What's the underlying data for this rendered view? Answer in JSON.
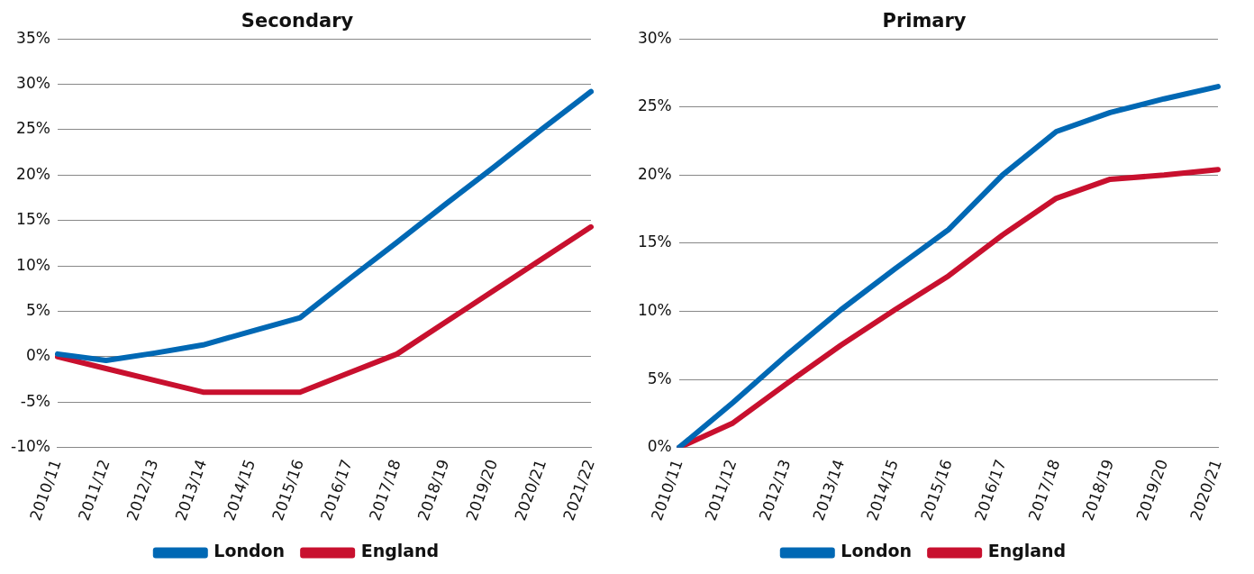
{
  "chart_data": [
    {
      "type": "line",
      "title": "Secondary",
      "categories": [
        "2010/11",
        "2011/12",
        "2012/13",
        "2013/14",
        "2014/15",
        "2015/16",
        "2016/17",
        "2017/18",
        "2018/19",
        "2019/20",
        "2020/21",
        "2021/22"
      ],
      "series": [
        {
          "name": "London",
          "color": "#0068b4",
          "values": [
            0.3,
            -0.4,
            0.4,
            1.3,
            2.8,
            4.3,
            8.5,
            12.6,
            16.8,
            20.9,
            25.1,
            29.2
          ]
        },
        {
          "name": "England",
          "color": "#c8102e",
          "values": [
            0,
            -1.3,
            -2.6,
            -3.9,
            -3.9,
            -3.9,
            -1.8,
            0.3,
            3.8,
            7.3,
            10.8,
            14.3
          ]
        }
      ],
      "ylim": [
        -10,
        35
      ],
      "yticks": [
        {
          "value": -10,
          "label": "-10%"
        },
        {
          "value": -5,
          "label": "-5%"
        },
        {
          "value": 0,
          "label": "0%"
        },
        {
          "value": 5,
          "label": "5%"
        },
        {
          "value": 10,
          "label": "10%"
        },
        {
          "value": 15,
          "label": "15%"
        },
        {
          "value": 20,
          "label": "20%"
        },
        {
          "value": 25,
          "label": "25%"
        },
        {
          "value": 30,
          "label": "30%"
        },
        {
          "value": 35,
          "label": "35%"
        }
      ],
      "grid": "y",
      "legend": "bottom"
    },
    {
      "type": "line",
      "title": "Primary",
      "categories": [
        "2010/11",
        "2011/12",
        "2012/13",
        "2013/14",
        "2014/15",
        "2015/16",
        "2016/17",
        "2017/18",
        "2018/19",
        "2019/20",
        "2020/21"
      ],
      "series": [
        {
          "name": "London",
          "color": "#0068b4",
          "values": [
            0,
            3.3,
            6.8,
            10.1,
            13.1,
            16.0,
            20.0,
            23.2,
            24.6,
            25.6,
            26.5
          ]
        },
        {
          "name": "England",
          "color": "#c8102e",
          "values": [
            0,
            1.8,
            4.7,
            7.5,
            10.1,
            12.6,
            15.6,
            18.3,
            19.7,
            20.0,
            20.4
          ]
        }
      ],
      "ylim": [
        0,
        30
      ],
      "yticks": [
        {
          "value": 0,
          "label": "0%"
        },
        {
          "value": 5,
          "label": "5%"
        },
        {
          "value": 10,
          "label": "10%"
        },
        {
          "value": 15,
          "label": "15%"
        },
        {
          "value": 20,
          "label": "20%"
        },
        {
          "value": 25,
          "label": "25%"
        },
        {
          "value": 30,
          "label": "30%"
        }
      ],
      "grid": "y",
      "legend": "bottom"
    }
  ]
}
